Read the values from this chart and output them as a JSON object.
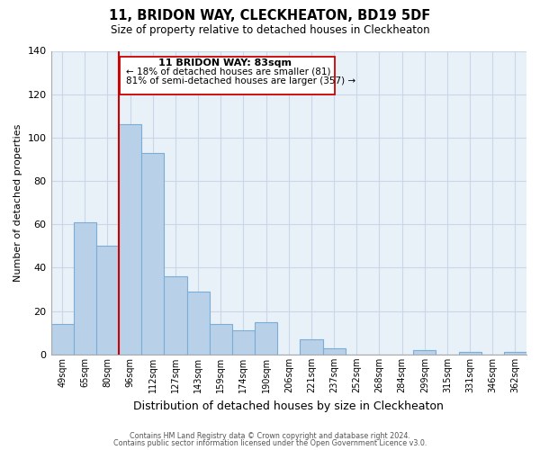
{
  "title": "11, BRIDON WAY, CLECKHEATON, BD19 5DF",
  "subtitle": "Size of property relative to detached houses in Cleckheaton",
  "xlabel": "Distribution of detached houses by size in Cleckheaton",
  "ylabel": "Number of detached properties",
  "footer_line1": "Contains HM Land Registry data © Crown copyright and database right 2024.",
  "footer_line2": "Contains public sector information licensed under the Open Government Licence v3.0.",
  "bar_labels": [
    "49sqm",
    "65sqm",
    "80sqm",
    "96sqm",
    "112sqm",
    "127sqm",
    "143sqm",
    "159sqm",
    "174sqm",
    "190sqm",
    "206sqm",
    "221sqm",
    "237sqm",
    "252sqm",
    "268sqm",
    "284sqm",
    "299sqm",
    "315sqm",
    "331sqm",
    "346sqm",
    "362sqm"
  ],
  "bar_values": [
    14,
    61,
    50,
    106,
    93,
    36,
    29,
    14,
    11,
    15,
    0,
    7,
    3,
    0,
    0,
    0,
    2,
    0,
    1,
    0,
    1
  ],
  "bar_color": "#b8d0e8",
  "bar_edge_color": "#7aaed6",
  "reference_line_color": "#cc0000",
  "ylim": [
    0,
    140
  ],
  "yticks": [
    0,
    20,
    40,
    60,
    80,
    100,
    120,
    140
  ],
  "annotation_title": "11 BRIDON WAY: 83sqm",
  "annotation_line1": "← 18% of detached houses are smaller (81)",
  "annotation_line2": "81% of semi-detached houses are larger (357) →",
  "background_color": "#ffffff",
  "grid_color": "#c8d8e8",
  "ref_line_bar_index": 2.5
}
